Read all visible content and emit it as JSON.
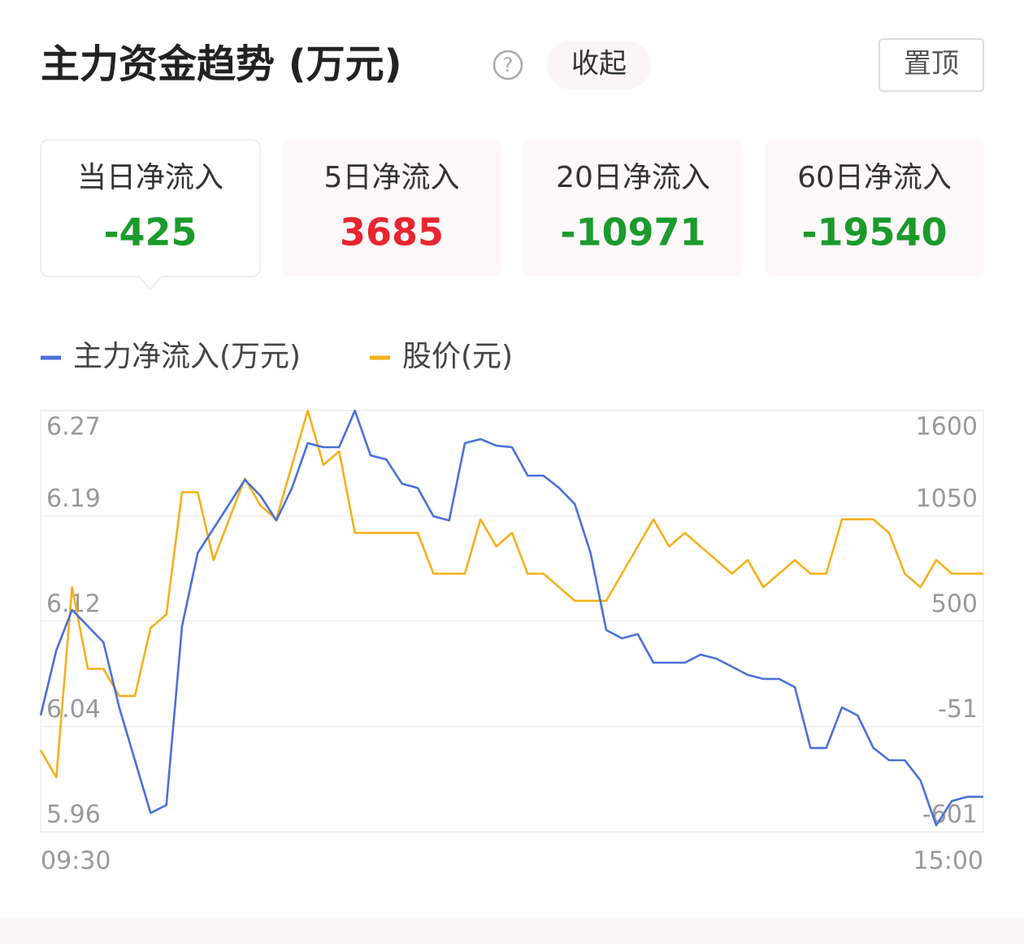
{
  "header": {
    "title": "主力资金趋势 (万元)",
    "help": "?",
    "collapse": "收起",
    "pin": "置顶"
  },
  "tabs": [
    {
      "label": "当日净流入",
      "value": -425
    },
    {
      "label": "5日净流入",
      "value": 3685
    },
    {
      "label": "20日净流入",
      "value": -10971
    },
    {
      "label": "60日净流入",
      "value": -19540
    }
  ],
  "chart_data": {
    "type": "line",
    "categories": [
      "09:30",
      null,
      null,
      null,
      null,
      null,
      null,
      null,
      null,
      null,
      null,
      null,
      null,
      null,
      null,
      null,
      null,
      null,
      null,
      null,
      null,
      null,
      null,
      null,
      null,
      null,
      null,
      null,
      null,
      null,
      null,
      null,
      null,
      null,
      null,
      null,
      null,
      null,
      null,
      null,
      null,
      null,
      null,
      null,
      null,
      null,
      null,
      null,
      null,
      null,
      null,
      null,
      null,
      null,
      null,
      null,
      null,
      null,
      null,
      null,
      "15:00"
    ],
    "series": [
      {
        "name": "主力净流入(万元)",
        "color": "#4a70d8",
        "axis": "y2",
        "values": [
          7,
          347,
          559,
          474,
          389,
          49,
          -227,
          -503,
          -461,
          474,
          856,
          984,
          1111,
          1239,
          1154,
          1026,
          1196,
          1430,
          1409,
          1409,
          1600,
          1366,
          1345,
          1218,
          1196,
          1048,
          1026,
          1430,
          1451,
          1417,
          1409,
          1260,
          1260,
          1196,
          1111,
          856,
          453,
          410,
          432,
          283,
          283,
          283,
          325,
          304,
          262,
          219,
          198,
          198,
          155,
          -163,
          -163,
          49,
          7,
          -163,
          -227,
          -227,
          -333,
          -567,
          -440,
          -418,
          -418
        ]
      },
      {
        "name": "股价(元)",
        "color": "#f5b01c",
        "values": [
          6.02,
          6.0,
          6.14,
          6.08,
          6.08,
          6.06,
          6.06,
          6.11,
          6.12,
          6.21,
          6.21,
          6.16,
          6.19,
          6.22,
          6.2,
          6.19,
          6.23,
          6.27,
          6.23,
          6.24,
          6.18,
          6.18,
          6.18,
          6.18,
          6.18,
          6.15,
          6.15,
          6.15,
          6.19,
          6.17,
          6.18,
          6.15,
          6.15,
          6.14,
          6.13,
          6.13,
          6.13,
          6.15,
          6.17,
          6.19,
          6.17,
          6.18,
          6.17,
          6.16,
          6.15,
          6.16,
          6.14,
          6.15,
          6.16,
          6.15,
          6.15,
          6.19,
          6.19,
          6.19,
          6.18,
          6.15,
          6.14,
          6.16,
          6.15,
          6.15,
          6.15
        ]
      }
    ],
    "ylim": [
      5.96,
      6.27
    ],
    "yticks": [
      5.96,
      {
        "value": 6.0375,
        "label": "6.04"
      },
      {
        "value": 6.115,
        "label": "6.12"
      },
      {
        "value": 6.1925,
        "label": "6.19"
      },
      6.27
    ],
    "y2lim": [
      -601,
      1600
    ],
    "y2ticks": [
      -601,
      {
        "value": -50.75,
        "label": "-51"
      },
      {
        "value": 499.5,
        "label": "500"
      },
      {
        "value": 1049.75,
        "label": "1050"
      },
      1600
    ],
    "grid": true
  }
}
